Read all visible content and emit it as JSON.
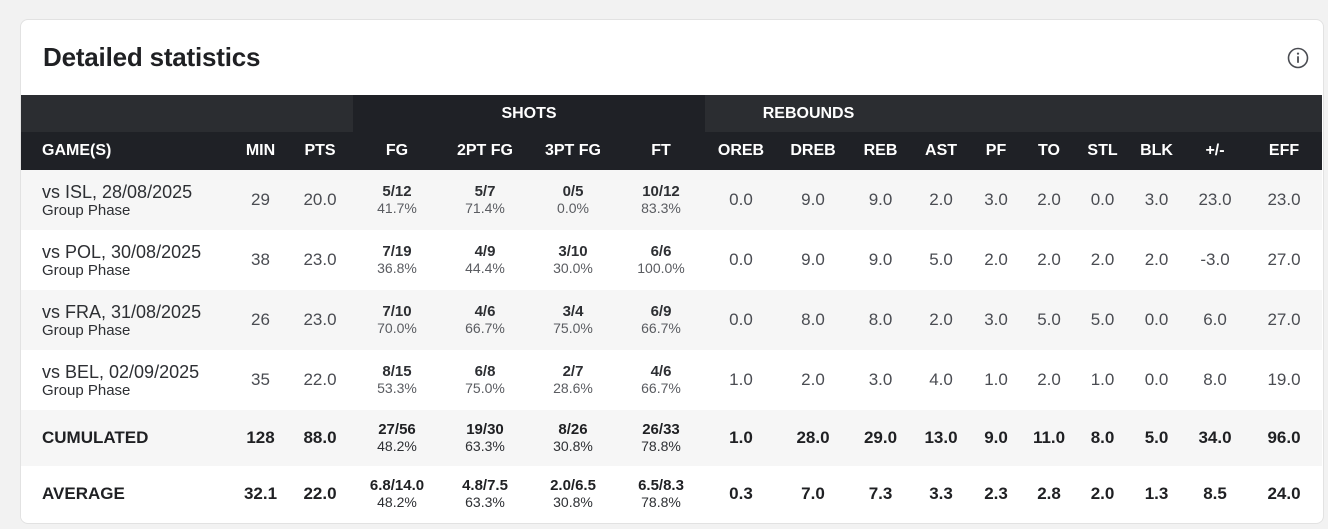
{
  "title": "Detailed statistics",
  "groups": {
    "shots": "SHOTS",
    "rebounds": "REBOUNDS"
  },
  "columns": [
    "GAME(S)",
    "MIN",
    "PTS",
    "FG",
    "2PT FG",
    "3PT FG",
    "FT",
    "OREB",
    "DREB",
    "REB",
    "AST",
    "PF",
    "TO",
    "STL",
    "BLK",
    "+/-",
    "EFF"
  ],
  "games": [
    {
      "game": "vs ISL, 28/08/2025",
      "phase": "Group Phase",
      "min": "29",
      "pts": "20.0",
      "fg": "5/12",
      "fg_pct": "41.7%",
      "fg2": "5/7",
      "fg2_pct": "71.4%",
      "fg3": "0/5",
      "fg3_pct": "0.0%",
      "ft": "10/12",
      "ft_pct": "83.3%",
      "oreb": "0.0",
      "dreb": "9.0",
      "reb": "9.0",
      "ast": "2.0",
      "pf": "3.0",
      "to": "2.0",
      "stl": "0.0",
      "blk": "3.0",
      "pm": "23.0",
      "eff": "23.0"
    },
    {
      "game": "vs POL, 30/08/2025",
      "phase": "Group Phase",
      "min": "38",
      "pts": "23.0",
      "fg": "7/19",
      "fg_pct": "36.8%",
      "fg2": "4/9",
      "fg2_pct": "44.4%",
      "fg3": "3/10",
      "fg3_pct": "30.0%",
      "ft": "6/6",
      "ft_pct": "100.0%",
      "oreb": "0.0",
      "dreb": "9.0",
      "reb": "9.0",
      "ast": "5.0",
      "pf": "2.0",
      "to": "2.0",
      "stl": "2.0",
      "blk": "2.0",
      "pm": "-3.0",
      "eff": "27.0"
    },
    {
      "game": "vs FRA, 31/08/2025",
      "phase": "Group Phase",
      "min": "26",
      "pts": "23.0",
      "fg": "7/10",
      "fg_pct": "70.0%",
      "fg2": "4/6",
      "fg2_pct": "66.7%",
      "fg3": "3/4",
      "fg3_pct": "75.0%",
      "ft": "6/9",
      "ft_pct": "66.7%",
      "oreb": "0.0",
      "dreb": "8.0",
      "reb": "8.0",
      "ast": "2.0",
      "pf": "3.0",
      "to": "5.0",
      "stl": "5.0",
      "blk": "0.0",
      "pm": "6.0",
      "eff": "27.0"
    },
    {
      "game": "vs BEL, 02/09/2025",
      "phase": "Group Phase",
      "min": "35",
      "pts": "22.0",
      "fg": "8/15",
      "fg_pct": "53.3%",
      "fg2": "6/8",
      "fg2_pct": "75.0%",
      "fg3": "2/7",
      "fg3_pct": "28.6%",
      "ft": "4/6",
      "ft_pct": "66.7%",
      "oreb": "1.0",
      "dreb": "2.0",
      "reb": "3.0",
      "ast": "4.0",
      "pf": "1.0",
      "to": "2.0",
      "stl": "1.0",
      "blk": "0.0",
      "pm": "8.0",
      "eff": "19.0"
    }
  ],
  "cumulated": {
    "label": "CUMULATED",
    "min": "128",
    "pts": "88.0",
    "fg": "27/56",
    "fg_pct": "48.2%",
    "fg2": "19/30",
    "fg2_pct": "63.3%",
    "fg3": "8/26",
    "fg3_pct": "30.8%",
    "ft": "26/33",
    "ft_pct": "78.8%",
    "oreb": "1.0",
    "dreb": "28.0",
    "reb": "29.0",
    "ast": "13.0",
    "pf": "9.0",
    "to": "11.0",
    "stl": "8.0",
    "blk": "5.0",
    "pm": "34.0",
    "eff": "96.0"
  },
  "average": {
    "label": "AVERAGE",
    "min": "32.1",
    "pts": "22.0",
    "fg": "6.8/14.0",
    "fg_pct": "48.2%",
    "fg2": "4.8/7.5",
    "fg2_pct": "63.3%",
    "fg3": "2.0/6.5",
    "fg3_pct": "30.8%",
    "ft": "6.5/8.3",
    "ft_pct": "78.8%",
    "oreb": "0.3",
    "dreb": "7.0",
    "reb": "7.3",
    "ast": "3.3",
    "pf": "2.3",
    "to": "2.8",
    "stl": "2.0",
    "blk": "1.3",
    "pm": "8.5",
    "eff": "24.0"
  }
}
